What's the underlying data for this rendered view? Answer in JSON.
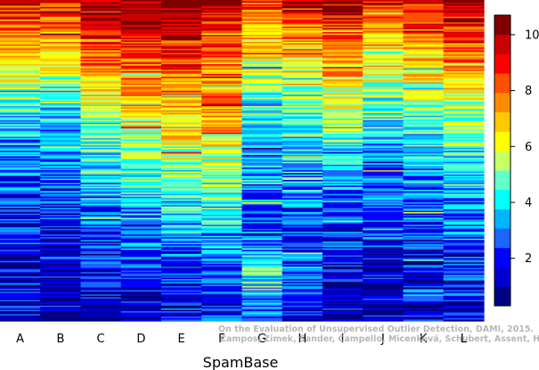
{
  "chart_data": {
    "type": "heatmap",
    "title": "",
    "xlabel": "SpamBase",
    "ylabel": "",
    "columns": [
      "A",
      "B",
      "C",
      "D",
      "E",
      "F",
      "G",
      "H",
      "I",
      "J",
      "K",
      "L"
    ],
    "colorbar": {
      "min": 0.3,
      "max": 10.7,
      "ticks": [
        2,
        4,
        6,
        8,
        10
      ],
      "palette": [
        "#000080",
        "#0000cd",
        "#0000ff",
        "#1e64ff",
        "#00b4ff",
        "#00ffff",
        "#64ffc8",
        "#c8ff64",
        "#ffff00",
        "#ffc800",
        "#ff8c00",
        "#ff5000",
        "#ff0000",
        "#c80000",
        "#800000"
      ]
    },
    "column_profiles": {
      "A": [
        [
          0,
          9.5
        ],
        [
          0.08,
          8
        ],
        [
          0.2,
          6.5
        ],
        [
          0.35,
          4
        ],
        [
          0.55,
          2.7
        ],
        [
          0.8,
          1.6
        ],
        [
          1,
          1.2
        ]
      ],
      "B": [
        [
          0,
          9.3
        ],
        [
          0.08,
          8
        ],
        [
          0.2,
          6.3
        ],
        [
          0.35,
          4
        ],
        [
          0.55,
          2.8
        ],
        [
          0.8,
          1.6
        ],
        [
          1,
          1.2
        ]
      ],
      "C": [
        [
          0,
          10.2
        ],
        [
          0.08,
          9
        ],
        [
          0.2,
          7.5
        ],
        [
          0.35,
          5.5
        ],
        [
          0.55,
          3.8
        ],
        [
          0.8,
          2.0
        ],
        [
          1,
          1.3
        ]
      ],
      "D": [
        [
          0,
          10.3
        ],
        [
          0.08,
          9.2
        ],
        [
          0.22,
          8
        ],
        [
          0.4,
          6
        ],
        [
          0.6,
          4
        ],
        [
          0.8,
          2.4
        ],
        [
          1,
          1.4
        ]
      ],
      "E": [
        [
          0,
          10.7
        ],
        [
          0.06,
          10.5
        ],
        [
          0.12,
          9.4
        ],
        [
          0.22,
          8.2
        ],
        [
          0.4,
          6.2
        ],
        [
          0.6,
          4.3
        ],
        [
          0.8,
          2.6
        ],
        [
          1,
          1.4
        ]
      ],
      "F": [
        [
          0,
          10
        ],
        [
          0.08,
          9
        ],
        [
          0.2,
          7.8
        ],
        [
          0.35,
          7
        ],
        [
          0.55,
          5.2
        ],
        [
          0.8,
          3
        ],
        [
          1,
          1.8
        ]
      ],
      "G": [
        [
          0,
          8.8
        ],
        [
          0.1,
          7
        ],
        [
          0.3,
          4.5
        ],
        [
          0.55,
          3
        ],
        [
          0.7,
          2.5
        ],
        [
          0.85,
          4.5
        ],
        [
          1,
          3
        ]
      ],
      "H": [
        [
          0,
          9.5
        ],
        [
          0.1,
          7.5
        ],
        [
          0.3,
          5
        ],
        [
          0.55,
          3.5
        ],
        [
          0.75,
          2
        ],
        [
          0.85,
          3
        ],
        [
          1,
          1.5
        ]
      ],
      "I": [
        [
          0,
          9.8
        ],
        [
          0.1,
          8.5
        ],
        [
          0.25,
          6.5
        ],
        [
          0.45,
          4.5
        ],
        [
          0.65,
          2.5
        ],
        [
          0.85,
          1.6
        ],
        [
          1,
          1.2
        ]
      ],
      "J": [
        [
          0,
          9
        ],
        [
          0.1,
          7
        ],
        [
          0.3,
          5
        ],
        [
          0.5,
          3
        ],
        [
          0.7,
          2.2
        ],
        [
          0.85,
          1.5
        ],
        [
          1,
          1.2
        ]
      ],
      "K": [
        [
          0,
          9.6
        ],
        [
          0.1,
          8
        ],
        [
          0.3,
          5.5
        ],
        [
          0.5,
          3.5
        ],
        [
          0.7,
          2.5
        ],
        [
          0.85,
          1.8
        ],
        [
          1,
          1.2
        ]
      ],
      "L": [
        [
          0,
          9.9
        ],
        [
          0.1,
          8.5
        ],
        [
          0.3,
          6
        ],
        [
          0.5,
          4
        ],
        [
          0.7,
          2.8
        ],
        [
          0.85,
          2
        ],
        [
          1,
          1.4
        ]
      ]
    },
    "grid": false,
    "legend": "colorbar-right"
  },
  "watermark": {
    "line1": "On the Evaluation of Unsupervised Outlier Detection, DAMI, 2015.",
    "line2": "Campos, Zimek, Sander, Campello, Micenková, Schubert, Assent, Houle"
  }
}
